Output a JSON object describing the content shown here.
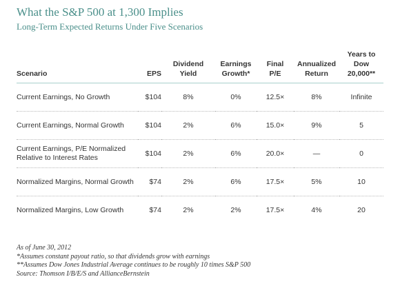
{
  "title": "What the S&P 500 at 1,300 Implies",
  "subtitle": "Long-Term Expected Returns Under Five Scenarios",
  "table": {
    "headers": {
      "scenario": "Scenario",
      "eps": "EPS",
      "dividend_yield": "Dividend Yield",
      "earnings_growth": "Earnings Growth*",
      "final_pe": "Final P/E",
      "annualized_return": "Annualized Return",
      "years_to_dow": "Years to Dow 20,000**"
    },
    "rows": [
      {
        "scenario": "Current Earnings, No Growth",
        "eps": "$104",
        "dividend_yield": "8%",
        "earnings_growth": "0%",
        "final_pe": "12.5×",
        "annualized_return": "8%",
        "years_to_dow": "Infinite"
      },
      {
        "scenario": "Current Earnings, Normal Growth",
        "eps": "$104",
        "dividend_yield": "2%",
        "earnings_growth": "6%",
        "final_pe": "15.0×",
        "annualized_return": "9%",
        "years_to_dow": "5"
      },
      {
        "scenario": "Current Earnings, P/E Normalized Relative to Interest Rates",
        "eps": "$104",
        "dividend_yield": "2%",
        "earnings_growth": "6%",
        "final_pe": "20.0×",
        "annualized_return": "—",
        "years_to_dow": "0"
      },
      {
        "scenario": "Normalized Margins, Normal Growth",
        "eps": "$74",
        "dividend_yield": "2%",
        "earnings_growth": "6%",
        "final_pe": "17.5×",
        "annualized_return": "5%",
        "years_to_dow": "10"
      },
      {
        "scenario": "Normalized Margins, Low Growth",
        "eps": "$74",
        "dividend_yield": "2%",
        "earnings_growth": "2%",
        "final_pe": "17.5×",
        "annualized_return": "4%",
        "years_to_dow": "20"
      }
    ]
  },
  "notes": {
    "as_of": "As of June 30, 2012",
    "note_1": "*Assumes constant payout ratio, so that dividends grow with earnings",
    "note_2": "**Assumes Dow Jones Industrial Average continues to be roughly 10 times S&P 500",
    "source": "Source: Thomson I/B/E/S and AllianceBernstein"
  }
}
